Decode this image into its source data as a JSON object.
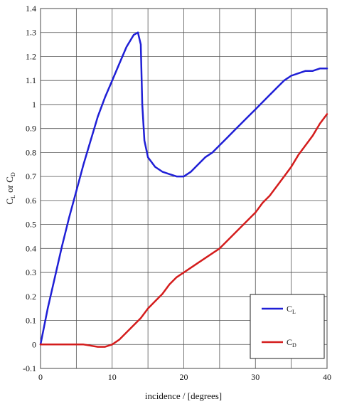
{
  "chart_data": {
    "type": "line",
    "title": "",
    "xlabel": "incidence / [degrees]",
    "ylabel_main": "C",
    "ylabel_sub_l": "L",
    "ylabel_or": " or C",
    "ylabel_sub_d": "D",
    "xlim": [
      0,
      40
    ],
    "ylim": [
      -0.1,
      1.4
    ],
    "grid": true,
    "legend_position": "bottom-right",
    "x_ticks": [
      0,
      10,
      20,
      30,
      40
    ],
    "y_ticks": [
      -0.1,
      0,
      0.1,
      0.2,
      0.3,
      0.4,
      0.5,
      0.6,
      0.7,
      0.8,
      0.9,
      1,
      1.1,
      1.2,
      1.3,
      1.4
    ],
    "x_tick_labels": [
      "0",
      "10",
      "20",
      "30",
      "40"
    ],
    "y_tick_labels": [
      "-0.1",
      "0",
      "0.1",
      "0.2",
      "0.3",
      "0.4",
      "0.5",
      "0.6",
      "0.7",
      "0.8",
      "0.9",
      "1",
      "1.1",
      "1.2",
      "1.3",
      "1.4"
    ],
    "series": [
      {
        "name_main": "C",
        "name_sub": "L",
        "color": "#1f1fd6",
        "x": [
          0,
          1,
          2,
          3,
          4,
          5,
          6,
          7,
          8,
          9,
          10,
          11,
          12,
          13,
          13.6,
          14,
          14.2,
          14.5,
          15,
          16,
          17,
          18,
          19,
          20,
          21,
          22,
          23,
          24,
          25,
          26,
          27,
          28,
          29,
          30,
          31,
          32,
          33,
          34,
          35,
          36,
          37,
          38,
          39,
          40
        ],
        "y": [
          0,
          0.15,
          0.28,
          0.41,
          0.53,
          0.64,
          0.75,
          0.85,
          0.95,
          1.03,
          1.1,
          1.17,
          1.24,
          1.29,
          1.3,
          1.25,
          1.0,
          0.85,
          0.78,
          0.74,
          0.72,
          0.71,
          0.7,
          0.7,
          0.72,
          0.75,
          0.78,
          0.8,
          0.83,
          0.86,
          0.89,
          0.92,
          0.95,
          0.98,
          1.01,
          1.04,
          1.07,
          1.1,
          1.12,
          1.13,
          1.14,
          1.14,
          1.15,
          1.15
        ]
      },
      {
        "name_main": "C",
        "name_sub": "D",
        "color": "#d41c1c",
        "x": [
          0,
          2,
          4,
          6,
          8,
          9,
          10,
          11,
          12,
          13,
          14,
          15,
          16,
          17,
          18,
          19,
          20,
          21,
          22,
          23,
          24,
          25,
          26,
          27,
          28,
          29,
          30,
          31,
          32,
          33,
          34,
          35,
          36,
          37,
          38,
          39,
          40
        ],
        "y": [
          0,
          0,
          0,
          0,
          -0.01,
          -0.01,
          0.0,
          0.02,
          0.05,
          0.08,
          0.11,
          0.15,
          0.18,
          0.21,
          0.25,
          0.28,
          0.3,
          0.32,
          0.34,
          0.36,
          0.38,
          0.4,
          0.43,
          0.46,
          0.49,
          0.52,
          0.55,
          0.59,
          0.62,
          0.66,
          0.7,
          0.74,
          0.79,
          0.83,
          0.87,
          0.92,
          0.96
        ]
      }
    ]
  }
}
